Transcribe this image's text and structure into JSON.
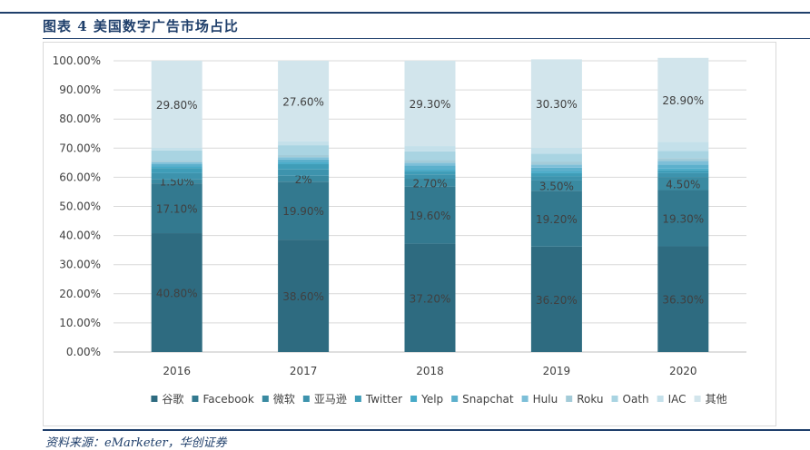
{
  "header": {
    "title": "图表 4 美国数字广告市场占比"
  },
  "footer": {
    "source": "资料来源：eMarketer，华创证券"
  },
  "chart_data": {
    "type": "bar",
    "stacked": true,
    "categories": [
      "2016",
      "2017",
      "2018",
      "2019",
      "2020"
    ],
    "ylim": [
      0,
      100
    ],
    "yticks": [
      "0.00%",
      "10.00%",
      "20.00%",
      "30.00%",
      "40.00%",
      "50.00%",
      "60.00%",
      "70.00%",
      "80.00%",
      "90.00%",
      "100.00%"
    ],
    "legend_position": "bottom",
    "series": [
      {
        "name": "谷歌",
        "color": "#2e6b80",
        "values": [
          40.8,
          38.6,
          37.2,
          36.2,
          36.3
        ],
        "labels": [
          "40.80%",
          "38.60%",
          "37.20%",
          "36.20%",
          "36.30%"
        ]
      },
      {
        "name": "Facebook",
        "color": "#33798f",
        "values": [
          17.1,
          19.9,
          19.6,
          19.2,
          19.3
        ],
        "labels": [
          "17.10%",
          "19.90%",
          "19.60%",
          "19.20%",
          "19.30%"
        ]
      },
      {
        "name": "微软",
        "color": "#3a8aa1",
        "values": [
          1.5,
          2,
          2.7,
          3.5,
          4.5
        ],
        "labels": [
          "1.50%",
          "2%",
          "2.70%",
          "3.50%",
          "4.50%"
        ]
      },
      {
        "name": "亚马逊",
        "color": "#3d93ad",
        "values": [
          2.0,
          2.2,
          1.5,
          1.4,
          1.3
        ],
        "labels": []
      },
      {
        "name": "Twitter",
        "color": "#3f9db8",
        "values": [
          1.8,
          1.8,
          1.2,
          1.1,
          1.0
        ],
        "labels": []
      },
      {
        "name": "Yelp",
        "color": "#47aac8",
        "values": [
          0.5,
          0.6,
          0.6,
          0.6,
          0.6
        ],
        "labels": []
      },
      {
        "name": "Snapchat",
        "color": "#5cb0cc",
        "values": [
          0.8,
          1.0,
          1.2,
          1.3,
          1.4
        ],
        "labels": []
      },
      {
        "name": "Hulu",
        "color": "#7dbfd8",
        "values": [
          0.7,
          0.8,
          1.0,
          1.1,
          1.2
        ],
        "labels": []
      },
      {
        "name": "Roku",
        "color": "#a3cbd8",
        "values": [
          0.5,
          0.7,
          0.9,
          1.0,
          1.0
        ],
        "labels": []
      },
      {
        "name": "Oath",
        "color": "#a9d4e2",
        "values": [
          3.5,
          3.4,
          3.0,
          2.7,
          2.5
        ],
        "labels": []
      },
      {
        "name": "IAC",
        "color": "#c4e0ea",
        "values": [
          1.0,
          1.4,
          1.8,
          2.1,
          3.0
        ],
        "labels": []
      },
      {
        "name": "其他",
        "color": "#d2e5ec",
        "values": [
          29.8,
          27.6,
          29.3,
          30.3,
          28.9
        ],
        "labels": [
          "29.80%",
          "27.60%",
          "29.30%",
          "30.30%",
          "28.90%"
        ]
      }
    ]
  }
}
